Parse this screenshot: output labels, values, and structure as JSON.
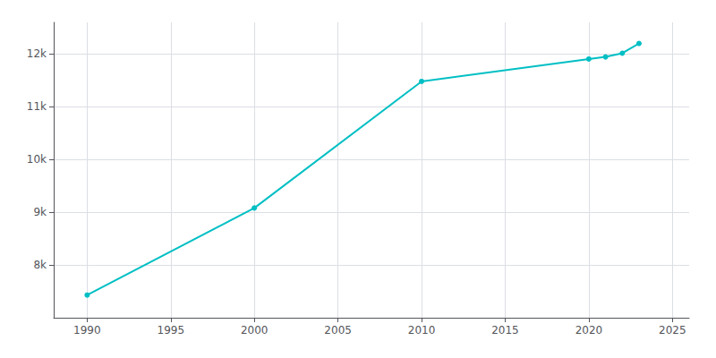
{
  "chart_data": {
    "type": "line",
    "x": [
      1990,
      2000,
      2010,
      2020,
      2021,
      2022,
      2023
    ],
    "values": [
      7430,
      9081,
      11481,
      11905,
      11945,
      12015,
      12200
    ],
    "color": "#00bfc4",
    "marker": "circle",
    "xlim": [
      1988,
      2026
    ],
    "ylim": [
      7000,
      12600
    ],
    "xticks": [
      1990,
      1995,
      2000,
      2005,
      2010,
      2015,
      2020,
      2025
    ],
    "yticks": [
      {
        "value": 8000,
        "label": "8k"
      },
      {
        "value": 9000,
        "label": "9k"
      },
      {
        "value": 10000,
        "label": "10k"
      },
      {
        "value": 11000,
        "label": "11k"
      },
      {
        "value": 12000,
        "label": "12k"
      }
    ],
    "grid": true
  }
}
